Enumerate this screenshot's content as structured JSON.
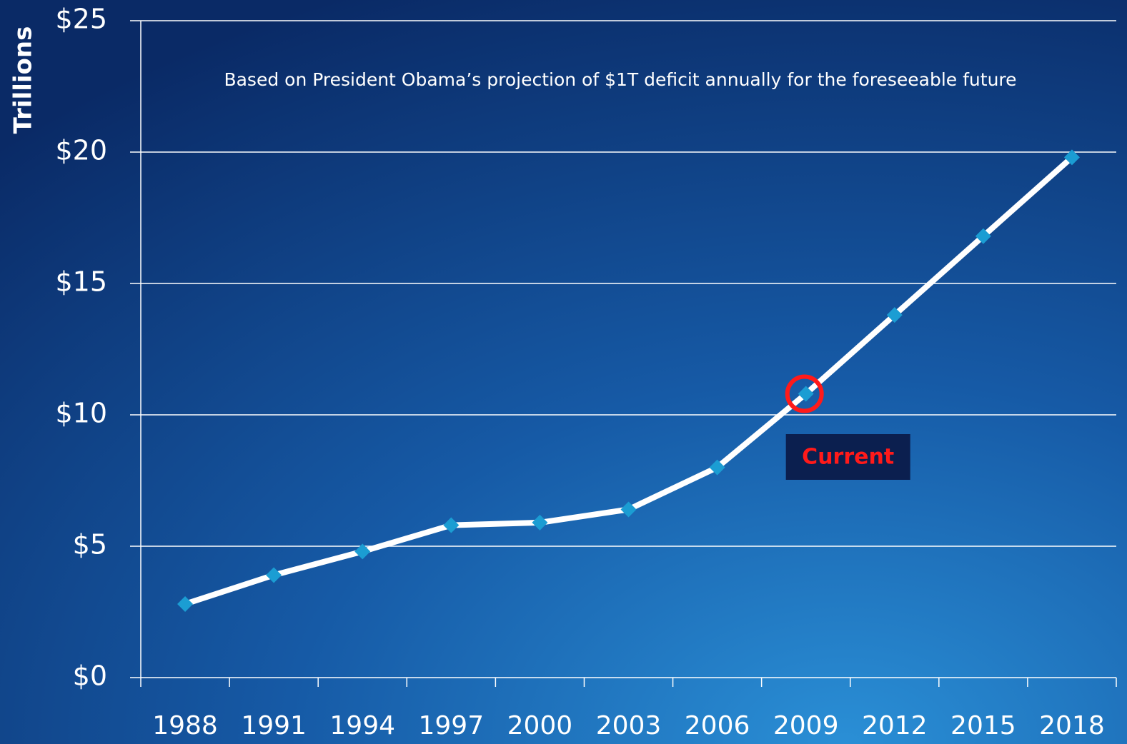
{
  "chart_data": {
    "type": "line",
    "y_label": "Trillions",
    "subtitle": "Based on President Obama’s projection of $1T deficit annually for the foreseeable future",
    "categories": [
      "1988",
      "1991",
      "1994",
      "1997",
      "2000",
      "2003",
      "2006",
      "2009",
      "2012",
      "2015",
      "2018"
    ],
    "series": [
      {
        "color": "#ffffff",
        "marker_color": "#1b9dd3",
        "values": [
          2.8,
          3.9,
          4.8,
          5.8,
          5.9,
          6.4,
          8.0,
          10.8,
          13.8,
          16.8,
          19.8
        ]
      }
    ],
    "ylim": [
      0,
      25
    ],
    "yticks": [
      {
        "value": 0,
        "label": "$0"
      },
      {
        "value": 5,
        "label": "$5"
      },
      {
        "value": 10,
        "label": "$10"
      },
      {
        "value": 15,
        "label": "$15"
      },
      {
        "value": 20,
        "label": "$20"
      },
      {
        "value": 25,
        "label": "$25"
      }
    ],
    "grid": true,
    "annotations": [
      {
        "text": "Current",
        "x": "2009",
        "color": "#ff1a1a"
      }
    ]
  }
}
